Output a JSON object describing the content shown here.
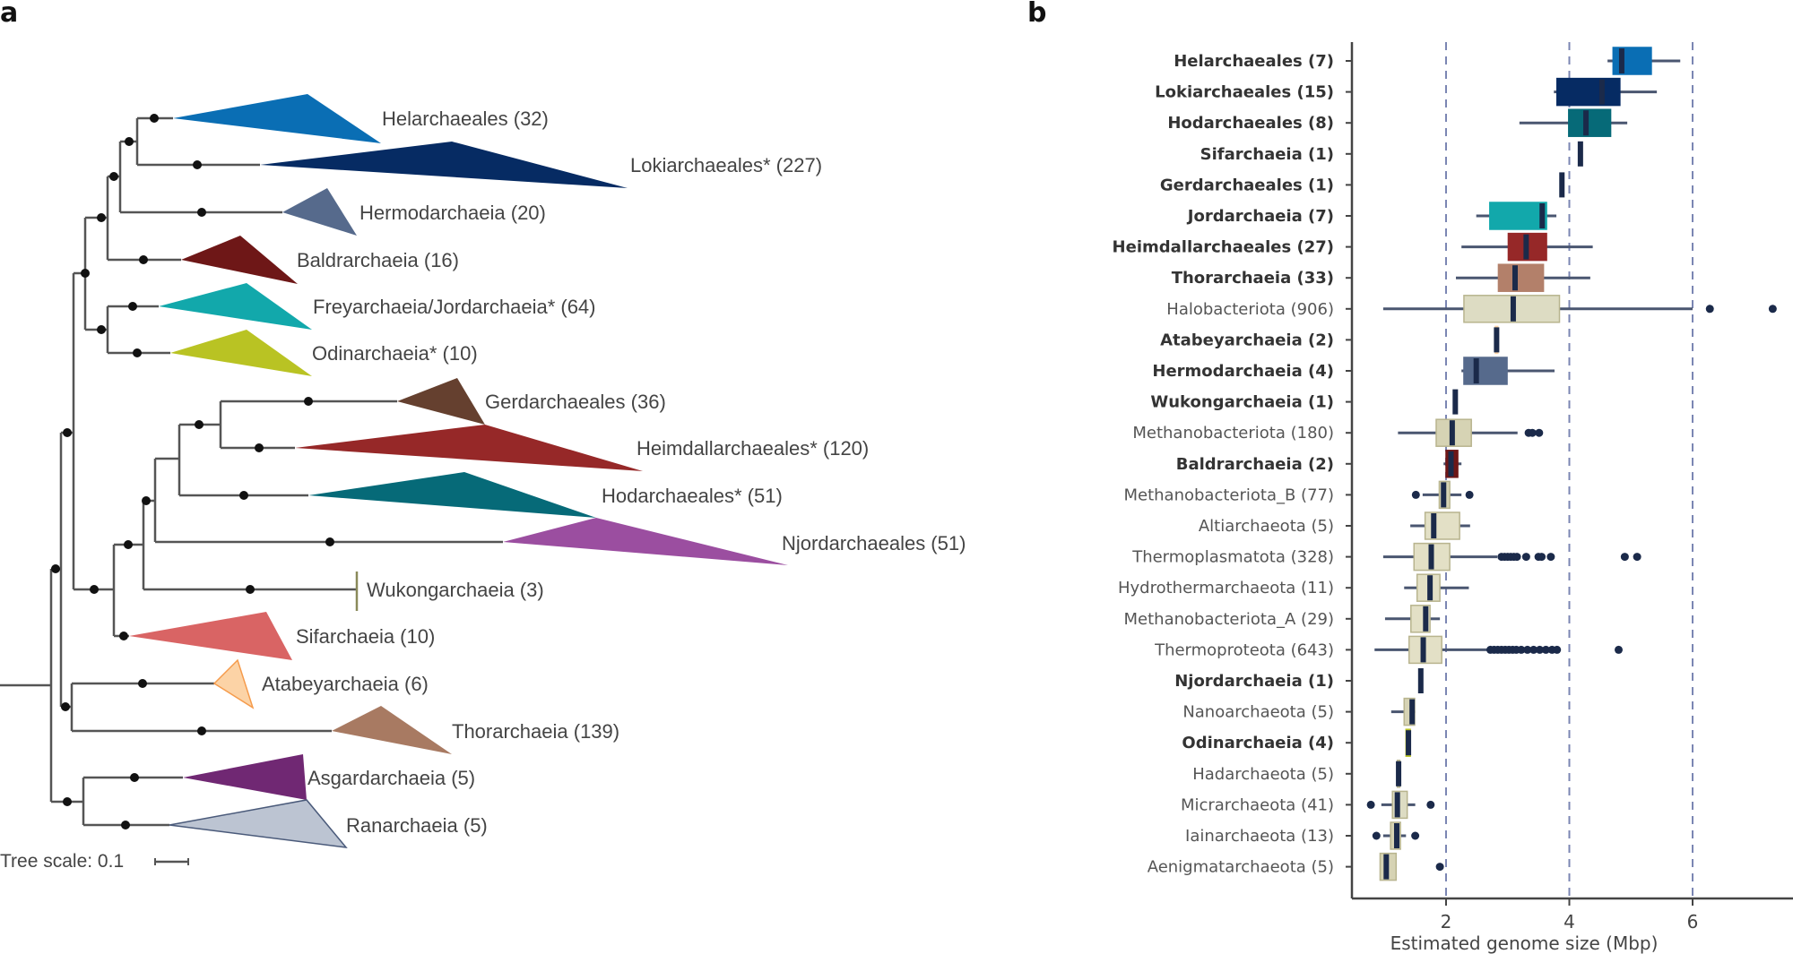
{
  "panel_a": {
    "letter": "a",
    "tree_scale": {
      "label": "Tree scale: 0.1",
      "value": 0.1
    },
    "clades": [
      {
        "key": "helarchaeales",
        "label": "Helarchaeales (32)",
        "name": "Helarchaeales",
        "count": 32,
        "color": "#0a6eb4"
      },
      {
        "key": "lokiarchaeales",
        "label": "Lokiarchaeales* (227)",
        "name": "Lokiarchaeales*",
        "count": 227,
        "color": "#062b63"
      },
      {
        "key": "hermodarchaeia",
        "label": "Hermodarchaeia (20)",
        "name": "Hermodarchaeia",
        "count": 20,
        "color": "#566a8c"
      },
      {
        "key": "baldrarchaeia",
        "label": "Baldrarchaeia (16)",
        "name": "Baldrarchaeia",
        "count": 16,
        "color": "#6e1717"
      },
      {
        "key": "freyarchaeia",
        "label": "Freyarchaeia/Jordarchaeia* (64)",
        "name": "Freyarchaeia/Jordarchaeia*",
        "count": 64,
        "color": "#12a8ab"
      },
      {
        "key": "odinarchaeia",
        "label": "Odinarchaeia* (10)",
        "name": "Odinarchaeia*",
        "count": 10,
        "color": "#b9c323"
      },
      {
        "key": "gerdarchaeales",
        "label": "Gerdarchaeales (36)",
        "name": "Gerdarchaeales",
        "count": 36,
        "color": "#65402f"
      },
      {
        "key": "heimdallarchaeales",
        "label": "Heimdallarchaeales* (120)",
        "name": "Heimdallarchaeales*",
        "count": 120,
        "color": "#962828"
      },
      {
        "key": "hodarchaeales",
        "label": "Hodarchaeales* (51)",
        "name": "Hodarchaeales*",
        "count": 51,
        "color": "#066a78"
      },
      {
        "key": "njordarchaeales",
        "label": "Njordarchaeales (51)",
        "name": "Njordarchaeales",
        "count": 51,
        "color": "#9b4ea0"
      },
      {
        "key": "wukongarchaeia",
        "label": "Wukongarchaeia (3)",
        "name": "Wukongarchaeia",
        "count": 3,
        "color": "#8a8a5a"
      },
      {
        "key": "sifarchaeia",
        "label": "Sifarchaeia (10)",
        "name": "Sifarchaeia",
        "count": 10,
        "color": "#d96464"
      },
      {
        "key": "atabeyarchaeia",
        "label": "Atabeyarchaeia (6)",
        "name": "Atabeyarchaeia",
        "count": 6,
        "color": "#fcd3a6"
      },
      {
        "key": "thorarchaeia",
        "label": "Thorarchaeia (139)",
        "name": "Thorarchaeia",
        "count": 139,
        "color": "#a87a62"
      },
      {
        "key": "asgardarchaeia",
        "label": "Asgardarchaeia (5)",
        "name": "Asgardarchaeia",
        "count": 5,
        "color": "#702873"
      },
      {
        "key": "ranarchaeia",
        "label": "Ranarchaeia (5)",
        "name": "Ranarchaeia",
        "count": 5,
        "color": "#bcc4d2"
      }
    ]
  },
  "chart_data": {
    "type": "boxplot",
    "panel_letter": "b",
    "title": "",
    "xlabel": "Estimated genome size (Mbp)",
    "ylabel": "",
    "xlim": [
      0.47,
      7.5
    ],
    "xticks": [
      2,
      4,
      6
    ],
    "reference_lines": [
      2,
      4,
      6
    ],
    "grid": false,
    "legend": "none",
    "categories": [
      {
        "label": "Helarchaeales (7)",
        "bold": true,
        "color": "#0a6eb4",
        "min": 4.62,
        "q1": 4.71,
        "median": 4.85,
        "q3": 5.33,
        "max": 5.8,
        "outliers": []
      },
      {
        "label": "Lokiarchaeales (15)",
        "bold": true,
        "color": "#062b63",
        "min": 3.75,
        "q1": 3.8,
        "median": 4.53,
        "q3": 4.82,
        "max": 5.42,
        "outliers": []
      },
      {
        "label": "Hodarchaeales (8)",
        "bold": true,
        "color": "#066a78",
        "min": 3.19,
        "q1": 3.99,
        "median": 4.27,
        "q3": 4.67,
        "max": 4.94,
        "outliers": []
      },
      {
        "label": "Sifarchaeia (1)",
        "bold": true,
        "color": "#d96464",
        "min": 4.18,
        "q1": 4.18,
        "median": 4.18,
        "q3": 4.18,
        "max": 4.18,
        "outliers": []
      },
      {
        "label": "Gerdarchaeales (1)",
        "bold": true,
        "color": "#65402f",
        "min": 3.88,
        "q1": 3.88,
        "median": 3.88,
        "q3": 3.88,
        "max": 3.88,
        "outliers": []
      },
      {
        "label": "Jordarchaeia (7)",
        "bold": true,
        "color": "#12a8ab",
        "min": 2.49,
        "q1": 2.71,
        "median": 3.56,
        "q3": 3.63,
        "max": 3.79,
        "outliers": []
      },
      {
        "label": "Heimdallarchaeales (27)",
        "bold": true,
        "color": "#962828",
        "min": 2.25,
        "q1": 3.01,
        "median": 3.3,
        "q3": 3.63,
        "max": 4.38,
        "outliers": []
      },
      {
        "label": "Thorarchaeia (33)",
        "bold": true,
        "color": "#b3806a",
        "min": 2.16,
        "q1": 2.85,
        "median": 3.12,
        "q3": 3.58,
        "max": 4.34,
        "outliers": []
      },
      {
        "label": "Halobacteriota (906)",
        "bold": false,
        "color": "#dddcc3",
        "min": 0.98,
        "q1": 2.29,
        "median": 3.09,
        "q3": 3.84,
        "max": 6.0,
        "outliers": [
          6.28,
          7.3
        ]
      },
      {
        "label": "Atabeyarchaeia (2)",
        "bold": true,
        "color": "#fcd3a6",
        "min": 2.8,
        "q1": 2.8,
        "median": 2.82,
        "q3": 2.84,
        "max": 2.84,
        "outliers": []
      },
      {
        "label": "Hermodarchaeia (4)",
        "bold": true,
        "color": "#566a8c",
        "min": 2.25,
        "q1": 2.29,
        "median": 2.49,
        "q3": 2.99,
        "max": 3.76,
        "outliers": []
      },
      {
        "label": "Wukongarchaeia (1)",
        "bold": true,
        "color": "#8a8a5a",
        "min": 2.15,
        "q1": 2.15,
        "median": 2.15,
        "q3": 2.15,
        "max": 2.15,
        "outliers": []
      },
      {
        "label": "Methanobacteriota (180)",
        "bold": false,
        "color": "#d6d3b4",
        "min": 1.22,
        "q1": 1.84,
        "median": 2.1,
        "q3": 2.41,
        "max": 3.16,
        "outliers": [
          3.34,
          3.4,
          3.51
        ]
      },
      {
        "label": "Baldrarchaeia (2)",
        "bold": true,
        "color": "#6e1717",
        "min": 1.96,
        "q1": 2.0,
        "median": 2.08,
        "q3": 2.19,
        "max": 2.25,
        "outliers": []
      },
      {
        "label": "Methanobacteriota_B (77)",
        "bold": false,
        "color": "#d6d3b4",
        "min": 1.62,
        "q1": 1.89,
        "median": 1.96,
        "q3": 2.06,
        "max": 2.25,
        "outliers": [
          1.51,
          2.38
        ]
      },
      {
        "label": "Altiarchaeota (5)",
        "bold": false,
        "color": "#e3e0c6",
        "min": 1.42,
        "q1": 1.66,
        "median": 1.8,
        "q3": 2.22,
        "max": 2.39,
        "outliers": []
      },
      {
        "label": "Thermoplasmatota (328)",
        "bold": false,
        "color": "#e3e0c6",
        "min": 0.98,
        "q1": 1.48,
        "median": 1.76,
        "q3": 2.06,
        "max": 2.83,
        "outliers": [
          2.9,
          2.95,
          3.0,
          3.05,
          3.1,
          3.15,
          3.3,
          3.5,
          3.55,
          3.7,
          4.9,
          5.1
        ]
      },
      {
        "label": "Hydrothermarchaeota (11)",
        "bold": false,
        "color": "#e3e0c6",
        "min": 1.32,
        "q1": 1.53,
        "median": 1.74,
        "q3": 1.9,
        "max": 2.37,
        "outliers": []
      },
      {
        "label": "Methanobacteriota_A (29)",
        "bold": false,
        "color": "#e3e0c6",
        "min": 1.01,
        "q1": 1.43,
        "median": 1.67,
        "q3": 1.74,
        "max": 1.9,
        "outliers": []
      },
      {
        "label": "Thermoproteota (643)",
        "bold": false,
        "color": "#e3e0c6",
        "min": 0.84,
        "q1": 1.4,
        "median": 1.63,
        "q3": 1.93,
        "max": 2.69,
        "outliers": [
          2.72,
          2.78,
          2.84,
          2.9,
          2.96,
          3.02,
          3.08,
          3.14,
          3.22,
          3.32,
          3.42,
          3.52,
          3.62,
          3.72,
          3.8,
          4.8
        ]
      },
      {
        "label": "Njordarchaeia (1)",
        "bold": true,
        "color": "#9b4ea0",
        "min": 1.59,
        "q1": 1.59,
        "median": 1.59,
        "q3": 1.59,
        "max": 1.59,
        "outliers": []
      },
      {
        "label": "Nanoarchaeota (5)",
        "bold": false,
        "color": "#d6d3b4",
        "min": 1.11,
        "q1": 1.32,
        "median": 1.45,
        "q3": 1.49,
        "max": 1.5,
        "outliers": []
      },
      {
        "label": "Odinarchaeia (4)",
        "bold": true,
        "color": "#b9c323",
        "min": 1.35,
        "q1": 1.35,
        "median": 1.39,
        "q3": 1.42,
        "max": 1.42,
        "outliers": []
      },
      {
        "label": "Hadarchaeota (5)",
        "bold": false,
        "color": "#d6d3b4",
        "min": 1.2,
        "q1": 1.21,
        "median": 1.23,
        "q3": 1.25,
        "max": 1.26,
        "outliers": []
      },
      {
        "label": "Micrarchaeota (41)",
        "bold": false,
        "color": "#dddcc3",
        "min": 0.95,
        "q1": 1.13,
        "median": 1.21,
        "q3": 1.37,
        "max": 1.5,
        "outliers": [
          0.78,
          1.75
        ]
      },
      {
        "label": "Iainarchaeota (13)",
        "bold": false,
        "color": "#d6d3b4",
        "min": 0.98,
        "q1": 1.1,
        "median": 1.2,
        "q3": 1.26,
        "max": 1.35,
        "outliers": [
          0.87,
          1.5
        ]
      },
      {
        "label": "Aenigmatarchaeota (5)",
        "bold": false,
        "color": "#d6d3b4",
        "min": 0.93,
        "q1": 0.93,
        "median": 1.03,
        "q3": 1.19,
        "max": 1.19,
        "outliers": [
          1.9
        ]
      }
    ]
  }
}
